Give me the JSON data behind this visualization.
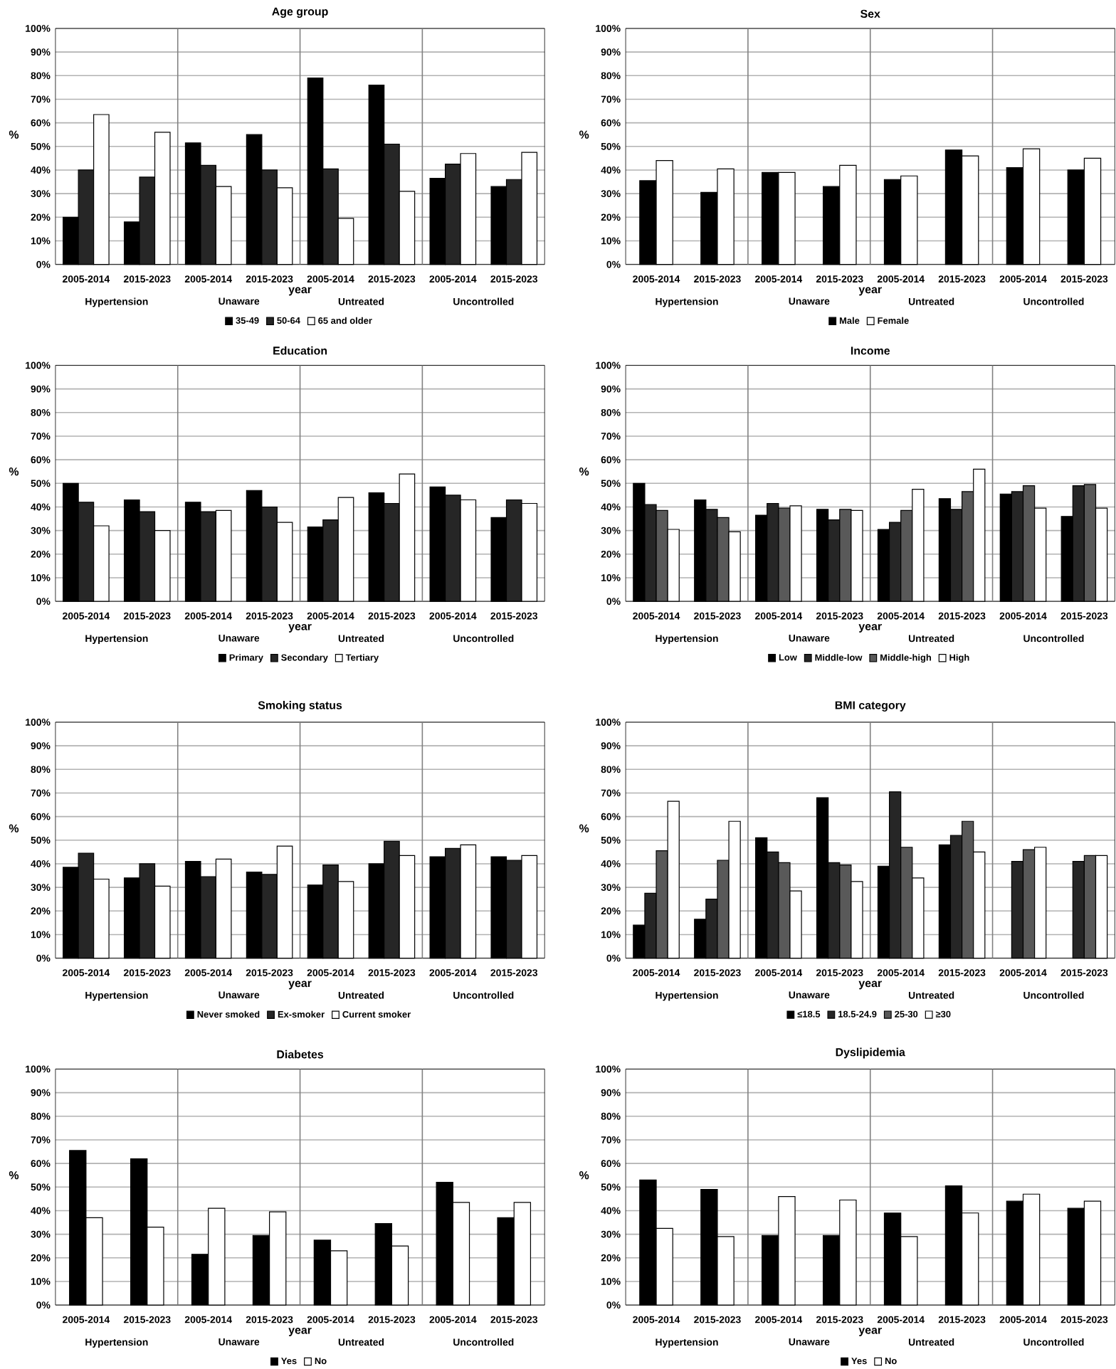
{
  "chart_data": [
    {
      "type": "bar",
      "title": "Age group",
      "xlabel": "year",
      "ylabel": "%",
      "categories": [
        "2005-2014",
        "2015-2023",
        "2005-2014",
        "2015-2023",
        "2005-2014",
        "2015-2023",
        "2005-2014",
        "2015-2023"
      ],
      "annotations": [
        "Hypertension",
        "Unaware",
        "Untreated",
        "Uncontrolled"
      ],
      "ylim": [
        0,
        100
      ],
      "yticks": [
        {
          "value": 0,
          "label": "0%"
        },
        {
          "value": 10,
          "label": "10%"
        },
        {
          "value": 20,
          "label": "20%"
        },
        {
          "value": 30,
          "label": "30%"
        },
        {
          "value": 40,
          "label": "40%"
        },
        {
          "value": 50,
          "label": "50%"
        },
        {
          "value": 60,
          "label": "60%"
        },
        {
          "value": 70,
          "label": "70%"
        },
        {
          "value": 80,
          "label": "80%"
        },
        {
          "value": 90,
          "label": "90%"
        },
        {
          "value": 100,
          "label": "100%"
        }
      ],
      "grid": "y",
      "legend": "bottom",
      "series": [
        {
          "name": "35-49",
          "color": "#000000",
          "values": [
            20,
            18,
            51.5,
            55,
            79,
            76,
            36.5,
            33
          ]
        },
        {
          "name": "50-64",
          "color": "#262626",
          "values": [
            40,
            37,
            42,
            40,
            40.5,
            51,
            42.5,
            36
          ]
        },
        {
          "name": "65 and older",
          "color": "#ffffff",
          "values": [
            63.5,
            56,
            33,
            32.5,
            19.5,
            31,
            47,
            47.5
          ]
        }
      ]
    },
    {
      "type": "bar",
      "title": "Sex",
      "xlabel": "year",
      "ylabel": "%",
      "categories": [
        "2005-2014",
        "2015-2023",
        "2005-2014",
        "2015-2023",
        "2005-2014",
        "2015-2023",
        "2005-2014",
        "2015-2023"
      ],
      "annotations": [
        "Hypertension",
        "Unaware",
        "Untreated",
        "Uncontrolled"
      ],
      "ylim": [
        0,
        100
      ],
      "yticks": [
        {
          "value": 0,
          "label": "0%"
        },
        {
          "value": 10,
          "label": "10%"
        },
        {
          "value": 20,
          "label": "20%"
        },
        {
          "value": 30,
          "label": "30%"
        },
        {
          "value": 40,
          "label": "40%"
        },
        {
          "value": 50,
          "label": "50%"
        },
        {
          "value": 60,
          "label": "60%"
        },
        {
          "value": 70,
          "label": "70%"
        },
        {
          "value": 80,
          "label": "80%"
        },
        {
          "value": 90,
          "label": "90%"
        },
        {
          "value": 100,
          "label": "100%"
        }
      ],
      "grid": "y",
      "legend": "bottom",
      "series": [
        {
          "name": "Male",
          "color": "#000000",
          "values": [
            35.5,
            30.5,
            39,
            33,
            36,
            48.5,
            41,
            40
          ]
        },
        {
          "name": "Female",
          "color": "#ffffff",
          "values": [
            44,
            40.5,
            39,
            42,
            37.5,
            46,
            49,
            45
          ]
        }
      ]
    },
    {
      "type": "bar",
      "title": "Education",
      "xlabel": "year",
      "ylabel": "%",
      "categories": [
        "2005-2014",
        "2015-2023",
        "2005-2014",
        "2015-2023",
        "2005-2014",
        "2015-2023",
        "2005-2014",
        "2015-2023"
      ],
      "annotations": [
        "Hypertension",
        "Unaware",
        "Untreated",
        "Uncontrolled"
      ],
      "ylim": [
        0,
        100
      ],
      "yticks": [
        {
          "value": 0,
          "label": "0%"
        },
        {
          "value": 10,
          "label": "10%"
        },
        {
          "value": 20,
          "label": "20%"
        },
        {
          "value": 30,
          "label": "30%"
        },
        {
          "value": 40,
          "label": "40%"
        },
        {
          "value": 50,
          "label": "50%"
        },
        {
          "value": 60,
          "label": "60%"
        },
        {
          "value": 70,
          "label": "70%"
        },
        {
          "value": 80,
          "label": "80%"
        },
        {
          "value": 90,
          "label": "90%"
        },
        {
          "value": 100,
          "label": "100%"
        }
      ],
      "grid": "y",
      "legend": "bottom",
      "series": [
        {
          "name": "Primary",
          "color": "#000000",
          "values": [
            50,
            43,
            42,
            47,
            31.5,
            46,
            48.5,
            35.5
          ]
        },
        {
          "name": "Secondary",
          "color": "#262626",
          "values": [
            42,
            38,
            38,
            40,
            34.5,
            41.5,
            45,
            43
          ]
        },
        {
          "name": "Tertiary",
          "color": "#ffffff",
          "values": [
            32,
            30,
            38.5,
            33.5,
            44,
            54,
            43,
            41.5
          ]
        }
      ]
    },
    {
      "type": "bar",
      "title": "Income",
      "xlabel": "year",
      "ylabel": "%",
      "categories": [
        "2005-2014",
        "2015-2023",
        "2005-2014",
        "2015-2023",
        "2005-2014",
        "2015-2023",
        "2005-2014",
        "2015-2023"
      ],
      "annotations": [
        "Hypertension",
        "Unaware",
        "Untreated",
        "Uncontrolled"
      ],
      "ylim": [
        0,
        100
      ],
      "yticks": [
        {
          "value": 0,
          "label": "0%"
        },
        {
          "value": 10,
          "label": "10%"
        },
        {
          "value": 20,
          "label": "20%"
        },
        {
          "value": 30,
          "label": "30%"
        },
        {
          "value": 40,
          "label": "40%"
        },
        {
          "value": 50,
          "label": "50%"
        },
        {
          "value": 60,
          "label": "60%"
        },
        {
          "value": 70,
          "label": "70%"
        },
        {
          "value": 80,
          "label": "80%"
        },
        {
          "value": 90,
          "label": "90%"
        },
        {
          "value": 100,
          "label": "100%"
        }
      ],
      "grid": "y",
      "legend": "bottom",
      "series": [
        {
          "name": "Low",
          "color": "#000000",
          "values": [
            50,
            43,
            36.5,
            39,
            30.5,
            43.5,
            45.5,
            36
          ]
        },
        {
          "name": "Middle-low",
          "color": "#262626",
          "values": [
            41,
            39,
            41.5,
            34.5,
            33.5,
            39,
            46.5,
            49
          ]
        },
        {
          "name": "Middle-high",
          "color": "#595959",
          "values": [
            38.5,
            35.5,
            39.5,
            39,
            38.5,
            46.5,
            49,
            49.5
          ]
        },
        {
          "name": "High",
          "color": "#ffffff",
          "values": [
            30.5,
            29.5,
            40.5,
            38.5,
            47.5,
            56,
            39.5,
            39.5
          ]
        }
      ]
    },
    {
      "type": "bar",
      "title": "Smoking status",
      "xlabel": "year",
      "ylabel": "%",
      "categories": [
        "2005-2014",
        "2015-2023",
        "2005-2014",
        "2015-2023",
        "2005-2014",
        "2015-2023",
        "2005-2014",
        "2015-2023"
      ],
      "annotations": [
        "Hypertension",
        "Unaware",
        "Untreated",
        "Uncontrolled"
      ],
      "ylim": [
        0,
        100
      ],
      "yticks": [
        {
          "value": 0,
          "label": "0%"
        },
        {
          "value": 10,
          "label": "10%"
        },
        {
          "value": 20,
          "label": "20%"
        },
        {
          "value": 30,
          "label": "30%"
        },
        {
          "value": 40,
          "label": "40%"
        },
        {
          "value": 50,
          "label": "50%"
        },
        {
          "value": 60,
          "label": "60%"
        },
        {
          "value": 70,
          "label": "70%"
        },
        {
          "value": 80,
          "label": "80%"
        },
        {
          "value": 90,
          "label": "90%"
        },
        {
          "value": 100,
          "label": "100%"
        }
      ],
      "grid": "y",
      "legend": "bottom",
      "series": [
        {
          "name": "Never smoked",
          "color": "#000000",
          "values": [
            38.5,
            34,
            41,
            36.5,
            31,
            40,
            43,
            43
          ]
        },
        {
          "name": "Ex-smoker",
          "color": "#262626",
          "values": [
            44.5,
            40,
            34.5,
            35.5,
            39.5,
            49.5,
            46.5,
            41.5
          ]
        },
        {
          "name": "Current smoker",
          "color": "#ffffff",
          "values": [
            33.5,
            30.5,
            42,
            47.5,
            32.5,
            43.5,
            48,
            43.5
          ]
        }
      ]
    },
    {
      "type": "bar",
      "title": "BMI category",
      "xlabel": "year",
      "ylabel": "%",
      "categories": [
        "2005-2014",
        "2015-2023",
        "2005-2014",
        "2015-2023",
        "2005-2014",
        "2015-2023",
        "2005-2014",
        "2015-2023"
      ],
      "annotations": [
        "Hypertension",
        "Unaware",
        "Untreated",
        "Uncontrolled"
      ],
      "ylim": [
        0,
        100
      ],
      "yticks": [
        {
          "value": 0,
          "label": "0%"
        },
        {
          "value": 10,
          "label": "10%"
        },
        {
          "value": 20,
          "label": "20%"
        },
        {
          "value": 30,
          "label": "30%"
        },
        {
          "value": 40,
          "label": "40%"
        },
        {
          "value": 50,
          "label": "50%"
        },
        {
          "value": 60,
          "label": "60%"
        },
        {
          "value": 70,
          "label": "70%"
        },
        {
          "value": 80,
          "label": "80%"
        },
        {
          "value": 90,
          "label": "90%"
        },
        {
          "value": 100,
          "label": "100%"
        }
      ],
      "grid": "y",
      "legend": "bottom",
      "series": [
        {
          "name": "≤18.5",
          "color": "#000000",
          "values": [
            14,
            16.5,
            51,
            68,
            39,
            48,
            null,
            null
          ]
        },
        {
          "name": "18.5-24.9",
          "color": "#262626",
          "values": [
            27.5,
            25,
            45,
            40.5,
            70.5,
            52,
            41,
            41
          ]
        },
        {
          "name": "25-30",
          "color": "#595959",
          "values": [
            45.5,
            41.5,
            40.5,
            39.5,
            47,
            58,
            46,
            43.5
          ]
        },
        {
          "name": "≥30",
          "color": "#ffffff",
          "values": [
            66.5,
            58,
            28.5,
            32.5,
            34,
            45,
            47,
            43.5
          ]
        }
      ]
    },
    {
      "type": "bar",
      "title": "Diabetes",
      "xlabel": "year",
      "ylabel": "%",
      "categories": [
        "2005-2014",
        "2015-2023",
        "2005-2014",
        "2015-2023",
        "2005-2014",
        "2015-2023",
        "2005-2014",
        "2015-2023"
      ],
      "annotations": [
        "Hypertension",
        "Unaware",
        "Untreated",
        "Uncontrolled"
      ],
      "ylim": [
        0,
        100
      ],
      "yticks": [
        {
          "value": 0,
          "label": "0%"
        },
        {
          "value": 10,
          "label": "10%"
        },
        {
          "value": 20,
          "label": "20%"
        },
        {
          "value": 30,
          "label": "30%"
        },
        {
          "value": 40,
          "label": "40%"
        },
        {
          "value": 50,
          "label": "50%"
        },
        {
          "value": 60,
          "label": "60%"
        },
        {
          "value": 70,
          "label": "70%"
        },
        {
          "value": 80,
          "label": "80%"
        },
        {
          "value": 90,
          "label": "90%"
        },
        {
          "value": 100,
          "label": "100%"
        }
      ],
      "grid": "y",
      "legend": "bottom",
      "series": [
        {
          "name": "Yes",
          "color": "#000000",
          "values": [
            65.5,
            62,
            21.5,
            29.5,
            27.5,
            34.5,
            52,
            37
          ]
        },
        {
          "name": "No",
          "color": "#ffffff",
          "values": [
            37,
            33,
            41,
            39.5,
            23,
            25,
            43.5,
            43.5
          ]
        }
      ]
    },
    {
      "type": "bar",
      "title": "Dyslipidemia",
      "xlabel": "year",
      "ylabel": "%",
      "categories": [
        "2005-2014",
        "2015-2023",
        "2005-2014",
        "2015-2023",
        "2005-2014",
        "2015-2023",
        "2005-2014",
        "2015-2023"
      ],
      "annotations": [
        "Hypertension",
        "Unaware",
        "Untreated",
        "Uncontrolled"
      ],
      "ylim": [
        0,
        100
      ],
      "yticks": [
        {
          "value": 0,
          "label": "0%"
        },
        {
          "value": 10,
          "label": "10%"
        },
        {
          "value": 20,
          "label": "20%"
        },
        {
          "value": 30,
          "label": "30%"
        },
        {
          "value": 40,
          "label": "40%"
        },
        {
          "value": 50,
          "label": "50%"
        },
        {
          "value": 60,
          "label": "60%"
        },
        {
          "value": 70,
          "label": "70%"
        },
        {
          "value": 80,
          "label": "80%"
        },
        {
          "value": 90,
          "label": "90%"
        },
        {
          "value": 100,
          "label": "100%"
        }
      ],
      "grid": "y",
      "legend": "bottom",
      "series": [
        {
          "name": "Yes",
          "color": "#000000",
          "values": [
            53,
            49,
            29.5,
            29.5,
            39,
            50.5,
            44,
            41
          ]
        },
        {
          "name": "No",
          "color": "#ffffff",
          "values": [
            32.5,
            29,
            46,
            44.5,
            29,
            39,
            47,
            44
          ]
        }
      ]
    }
  ]
}
